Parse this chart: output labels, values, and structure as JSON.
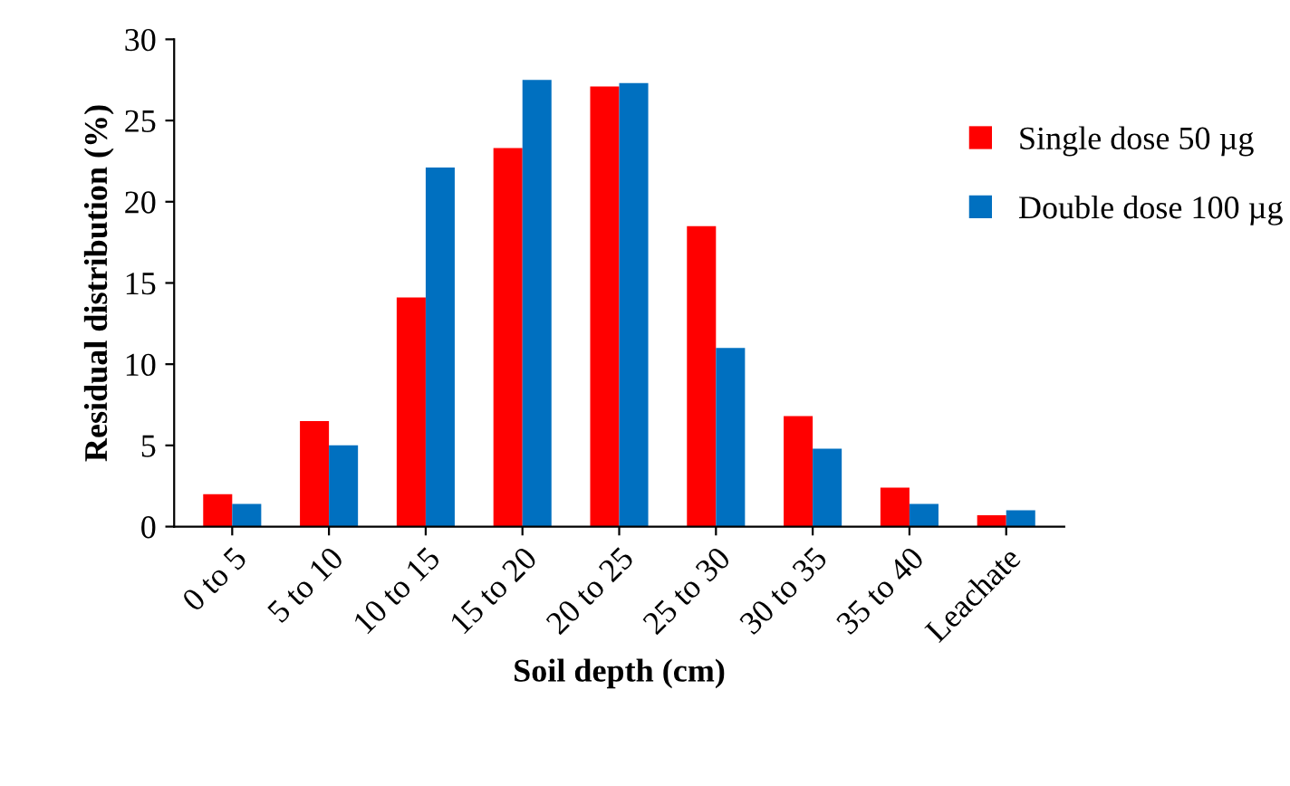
{
  "chart_data": {
    "type": "bar",
    "xlabel": "Soil depth (cm)",
    "ylabel": "Residual distribution (%)",
    "categories": [
      "0 to 5",
      "5 to 10",
      "10 to 15",
      "15 to 20",
      "20 to 25",
      "25 to 30",
      "30 to 35",
      "35 to 40",
      "Leachate"
    ],
    "series": [
      {
        "name": "Single dose 50 µg",
        "color": "#ff0000",
        "values": [
          2.0,
          6.5,
          14.1,
          23.3,
          27.1,
          18.5,
          6.8,
          2.4,
          0.7
        ]
      },
      {
        "name": "Double dose 100 µg",
        "color": "#0070c0",
        "values": [
          1.4,
          5.0,
          22.1,
          27.5,
          27.3,
          11.0,
          4.8,
          1.4,
          1.0
        ]
      }
    ],
    "ylim": [
      0,
      30
    ],
    "yticks": [
      0,
      5,
      10,
      15,
      20,
      25,
      30
    ],
    "grid": false,
    "legend": "right"
  }
}
